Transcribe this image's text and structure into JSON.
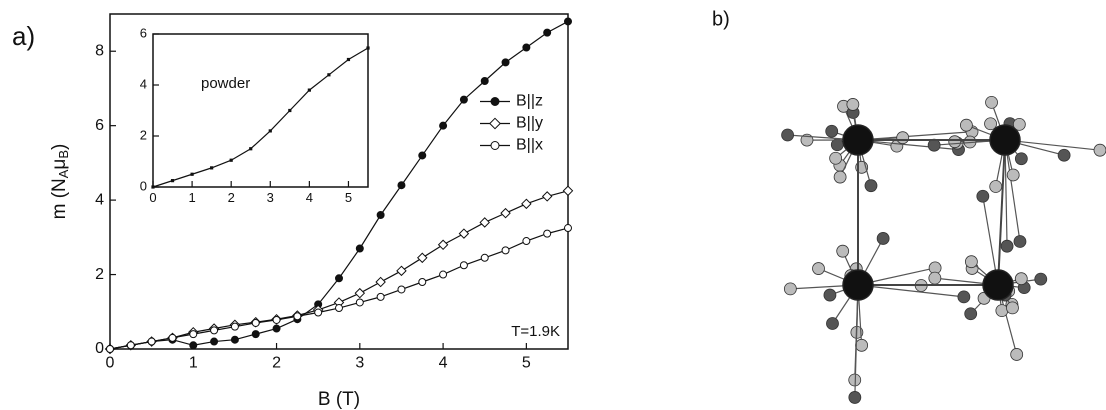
{
  "panel_labels": [
    "a)",
    "b)"
  ],
  "chart_data": [
    {
      "type": "line",
      "xlabel": "B (T)",
      "ylabel_parts": [
        "m (N",
        "A",
        "μ",
        "B",
        ")"
      ],
      "xlim": [
        0,
        5.5
      ],
      "ylim": [
        0,
        9
      ],
      "xticks": [
        0,
        1,
        2,
        3,
        4,
        5
      ],
      "yticks": [
        0,
        2,
        4,
        6,
        8
      ],
      "legend": "center right",
      "annotation": "T=1.9K",
      "x": [
        0,
        0.25,
        0.5,
        0.75,
        1,
        1.25,
        1.5,
        1.75,
        2,
        2.25,
        2.5,
        2.75,
        3,
        3.25,
        3.5,
        3.75,
        4,
        4.25,
        4.5,
        4.75,
        5,
        5.25,
        5.5
      ],
      "series": [
        {
          "name": "B||z",
          "color": "#111111",
          "marker": "circle-filled",
          "values": [
            0,
            0.1,
            0.2,
            0.25,
            0.1,
            0.2,
            0.25,
            0.4,
            0.55,
            0.8,
            1.2,
            1.9,
            2.7,
            3.6,
            4.4,
            5.2,
            6.0,
            6.7,
            7.2,
            7.7,
            8.1,
            8.5,
            8.8
          ]
        },
        {
          "name": "B||y",
          "color": "#111111",
          "marker": "diamond-open",
          "values": [
            0,
            0.1,
            0.2,
            0.3,
            0.45,
            0.55,
            0.65,
            0.72,
            0.8,
            0.9,
            1.05,
            1.25,
            1.5,
            1.8,
            2.1,
            2.45,
            2.8,
            3.1,
            3.4,
            3.65,
            3.9,
            4.1,
            4.25
          ]
        },
        {
          "name": "B||x",
          "color": "#111111",
          "marker": "circle-open",
          "values": [
            0,
            0.1,
            0.2,
            0.3,
            0.4,
            0.5,
            0.6,
            0.7,
            0.78,
            0.88,
            0.98,
            1.1,
            1.25,
            1.4,
            1.6,
            1.8,
            2.0,
            2.25,
            2.45,
            2.65,
            2.9,
            3.1,
            3.25
          ]
        }
      ]
    },
    {
      "type": "line",
      "annotation": "powder",
      "xlim": [
        0,
        5.5
      ],
      "ylim": [
        0,
        6
      ],
      "xticks": [
        0,
        1,
        2,
        3,
        4,
        5
      ],
      "yticks": [
        0,
        2,
        4,
        6
      ],
      "x": [
        0,
        0.5,
        1,
        1.5,
        2,
        2.5,
        3,
        3.5,
        4,
        4.5,
        5,
        5.5
      ],
      "series": [
        {
          "name": "powder",
          "color": "#111111",
          "marker": "square-small",
          "values": [
            0,
            0.25,
            0.5,
            0.75,
            1.05,
            1.5,
            2.2,
            3.0,
            3.8,
            4.4,
            5.0,
            5.45
          ]
        }
      ]
    }
  ]
}
